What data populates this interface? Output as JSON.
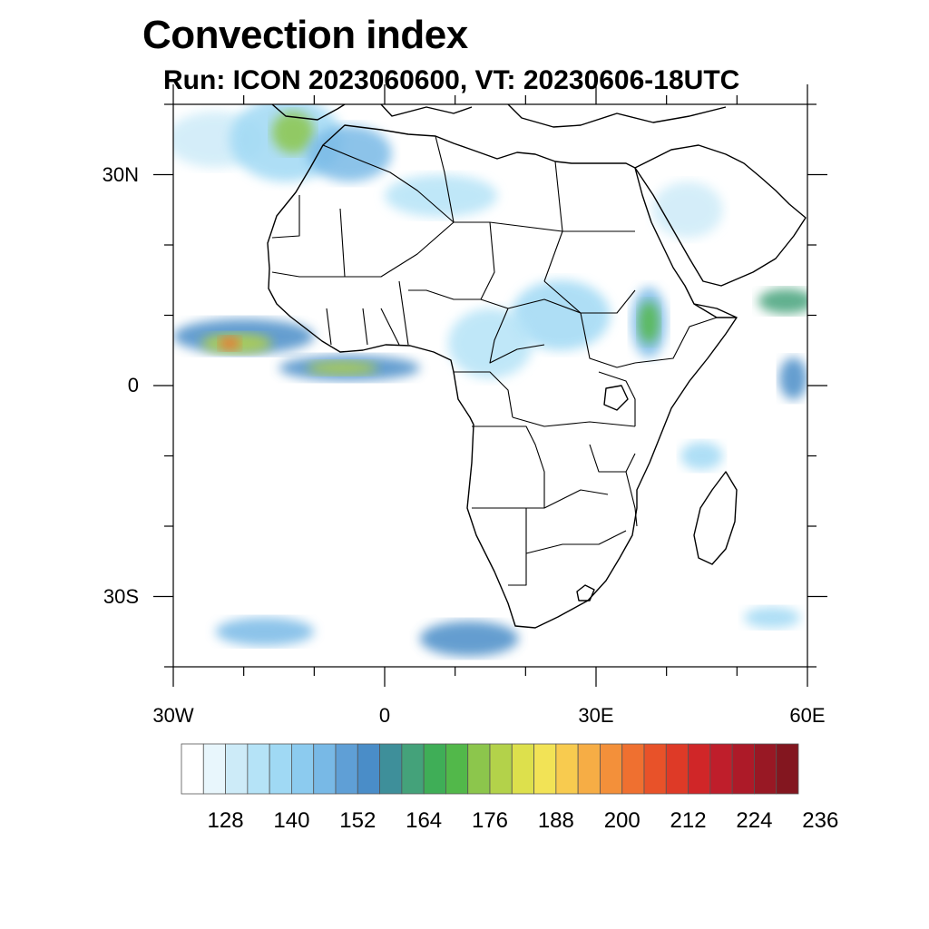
{
  "title": "Convection index",
  "subtitle": "Run: ICON 2023060600,  VT: 20230606-18UTC",
  "map": {
    "lon_range": [
      -30,
      60
    ],
    "lat_range": [
      -40,
      40
    ],
    "x_ticks": [
      {
        "lon": -30,
        "label": "30W"
      },
      {
        "lon": 0,
        "label": "0"
      },
      {
        "lon": 30,
        "label": "30E"
      },
      {
        "lon": 60,
        "label": "60E"
      }
    ],
    "y_ticks": [
      {
        "lat": 30,
        "label": "30N"
      },
      {
        "lat": 0,
        "label": "0"
      },
      {
        "lat": -30,
        "label": "30S"
      }
    ],
    "minor_lon_step": 10,
    "minor_lat_step": 10
  },
  "colorbar": {
    "labels": [
      "128",
      "140",
      "152",
      "164",
      "176",
      "188",
      "200",
      "212",
      "224",
      "236"
    ],
    "colors": [
      "#ffffff",
      "#e8f6fc",
      "#cdebf8",
      "#b5e3f7",
      "#a0d9f4",
      "#8ccbef",
      "#78b9e6",
      "#5f9fd6",
      "#4a8dc8",
      "#3e8f9a",
      "#44a27a",
      "#3fae57",
      "#52b84a",
      "#8cc64c",
      "#b3d24a",
      "#dde04c",
      "#f2e356",
      "#f8cb4f",
      "#f6ad45",
      "#f3903a",
      "#ef7030",
      "#e85229",
      "#de3a27",
      "#d02628",
      "#bf1e2b",
      "#ad1a28",
      "#981824",
      "#83161f"
    ]
  },
  "fields": [
    {
      "lon": -24,
      "lat": 35,
      "rx": 7,
      "ry": 4,
      "level": 2
    },
    {
      "lon": -14,
      "lat": 35,
      "rx": 8,
      "ry": 6,
      "level": 4
    },
    {
      "lon": -13,
      "lat": 36,
      "rx": 3,
      "ry": 3,
      "level": 13
    },
    {
      "lon": -5,
      "lat": 33,
      "rx": 6,
      "ry": 4,
      "level": 6
    },
    {
      "lon": 8,
      "lat": 27,
      "rx": 8,
      "ry": 3,
      "level": 3
    },
    {
      "lon": -20,
      "lat": 7,
      "rx": 10,
      "ry": 2.5,
      "level": 8
    },
    {
      "lon": -21,
      "lat": 6,
      "rx": 5,
      "ry": 1.5,
      "level": 14
    },
    {
      "lon": -22,
      "lat": 6,
      "rx": 1.5,
      "ry": 1,
      "level": 20
    },
    {
      "lon": -5,
      "lat": 2.5,
      "rx": 10,
      "ry": 1.8,
      "level": 8
    },
    {
      "lon": -6,
      "lat": 2.5,
      "rx": 5,
      "ry": 1,
      "level": 14
    },
    {
      "lon": 25,
      "lat": 10,
      "rx": 7,
      "ry": 5,
      "level": 4
    },
    {
      "lon": 37.5,
      "lat": 9,
      "rx": 2.5,
      "ry": 5,
      "level": 6
    },
    {
      "lon": 37.5,
      "lat": 9,
      "rx": 1.5,
      "ry": 3,
      "level": 12
    },
    {
      "lon": 15,
      "lat": 6,
      "rx": 6,
      "ry": 5,
      "level": 3
    },
    {
      "lon": 57,
      "lat": 12,
      "rx": 4,
      "ry": 1.8,
      "level": 10
    },
    {
      "lon": 58,
      "lat": 1,
      "rx": 2,
      "ry": 3,
      "level": 8
    },
    {
      "lon": 45,
      "lat": -10,
      "rx": 3,
      "ry": 2,
      "level": 4
    },
    {
      "lon": 12,
      "lat": -36,
      "rx": 7,
      "ry": 2.5,
      "level": 8
    },
    {
      "lon": -17,
      "lat": -35,
      "rx": 7,
      "ry": 2,
      "level": 6
    },
    {
      "lon": 55,
      "lat": -33,
      "rx": 4,
      "ry": 1.5,
      "level": 4
    },
    {
      "lon": 43,
      "lat": 25,
      "rx": 5,
      "ry": 4,
      "level": 2
    }
  ]
}
